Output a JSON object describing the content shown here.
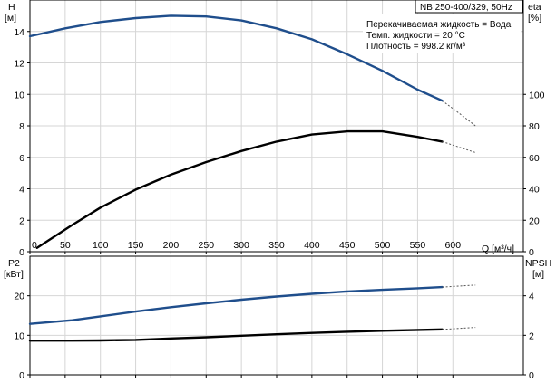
{
  "chart_data": [
    {
      "type": "line",
      "title": "NB 250-400/329, 50Hz",
      "xlabel": "Q [м³/ч]",
      "xlim": [
        0,
        700
      ],
      "x_ticks": [
        "0",
        "50",
        "100",
        "150",
        "200",
        "250",
        "300",
        "350",
        "400",
        "450",
        "500",
        "550",
        "600"
      ],
      "left_axis": {
        "label": "H",
        "unit": "[м]",
        "ylim": [
          0,
          16
        ],
        "ticks": [
          "0",
          "2",
          "4",
          "6",
          "8",
          "10",
          "12",
          "14"
        ]
      },
      "right_axis": {
        "label": "eta",
        "unit": "[%]",
        "ylim": [
          0,
          160
        ],
        "ticks": [
          "0",
          "20",
          "40",
          "60",
          "80",
          "100"
        ]
      },
      "info": [
        "Перекачиваемая жидкость = Вода",
        "Темп. жидкости = 20 °C",
        "Плотность = 998.2 кг/м³"
      ],
      "grid": true,
      "series": [
        {
          "axis": "left",
          "color": "#1f4e8c",
          "x": [
            0,
            50,
            100,
            150,
            200,
            250,
            300,
            350,
            400,
            450,
            500,
            550,
            585
          ],
          "y": [
            13.7,
            14.2,
            14.6,
            14.85,
            15.0,
            14.95,
            14.7,
            14.2,
            13.5,
            12.55,
            11.5,
            10.3,
            9.6
          ],
          "ext_x": [
            585,
            615,
            632
          ],
          "ext_y": [
            9.6,
            8.6,
            8.0
          ]
        },
        {
          "axis": "right",
          "color": "#000000",
          "x": [
            10,
            60,
            100,
            150,
            200,
            250,
            300,
            350,
            400,
            450,
            500,
            550,
            585
          ],
          "y": [
            2.5,
            17,
            28,
            39.5,
            49,
            57,
            64,
            70,
            74.5,
            76.5,
            76.5,
            73,
            70
          ],
          "ext_x": [
            585,
            632
          ],
          "ext_y": [
            70,
            63
          ]
        }
      ]
    },
    {
      "type": "line",
      "xlim": [
        0,
        700
      ],
      "left_axis": {
        "label": "P2",
        "unit": "[кВт]",
        "ylim": [
          0,
          30
        ],
        "ticks": [
          "0",
          "10",
          "20"
        ]
      },
      "right_axis": {
        "label": "NPSH",
        "unit": "[м]",
        "ylim": [
          0,
          6
        ],
        "ticks": [
          "0",
          "2",
          "4"
        ]
      },
      "grid": true,
      "series": [
        {
          "axis": "left",
          "color": "#1f4e8c",
          "x": [
            0,
            60,
            100,
            150,
            200,
            250,
            300,
            350,
            400,
            450,
            500,
            550,
            585
          ],
          "y": [
            12.9,
            13.8,
            14.8,
            16.0,
            17.1,
            18.1,
            19.0,
            19.8,
            20.5,
            21.1,
            21.5,
            21.9,
            22.2
          ],
          "ext_x": [
            585,
            632
          ],
          "ext_y": [
            22.2,
            22.7
          ]
        },
        {
          "axis": "right",
          "color": "#000000",
          "x": [
            0,
            60,
            100,
            150,
            200,
            250,
            300,
            350,
            400,
            450,
            500,
            550,
            585
          ],
          "y": [
            1.73,
            1.73,
            1.74,
            1.77,
            1.84,
            1.9,
            1.98,
            2.05,
            2.12,
            2.18,
            2.23,
            2.27,
            2.3
          ],
          "ext_x": [
            585,
            632
          ],
          "ext_y": [
            2.3,
            2.4
          ]
        }
      ]
    }
  ]
}
